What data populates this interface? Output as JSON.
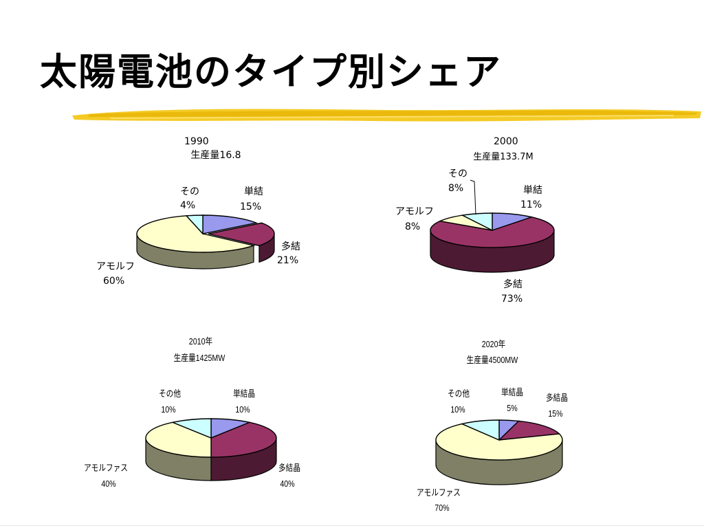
{
  "slide": {
    "title": "太陽電池のタイプ別シェア"
  },
  "colors": {
    "single": "#9999EE",
    "poly": "#993366",
    "amorphous": "#FFFFCC",
    "other": "#CCFFFF",
    "brush": "#F2C200"
  },
  "chart_data": [
    {
      "type": "pie",
      "title": "1990",
      "subtitle": "生産量16.8",
      "slices": [
        {
          "label": "単結",
          "value": 15,
          "value_label": "15%"
        },
        {
          "label": "多結",
          "value": 21,
          "value_label": "21%"
        },
        {
          "label": "アモルフ",
          "value": 60,
          "value_label": "60%"
        },
        {
          "label": "その",
          "value": 4,
          "value_label": "4%"
        }
      ]
    },
    {
      "type": "pie",
      "title": "2000",
      "subtitle": "生産量133.7M",
      "slices": [
        {
          "label": "単結",
          "value": 11,
          "value_label": "11%"
        },
        {
          "label": "多結",
          "value": 73,
          "value_label": "73%"
        },
        {
          "label": "アモルフ",
          "value": 8,
          "value_label": "8%"
        },
        {
          "label": "その",
          "value": 8,
          "value_label": "8%"
        }
      ]
    },
    {
      "type": "pie",
      "title": "2010年",
      "subtitle": "生産量1425MW",
      "slices": [
        {
          "label": "単結晶",
          "value": 10,
          "value_label": "10%"
        },
        {
          "label": "多結晶",
          "value": 40,
          "value_label": "40%"
        },
        {
          "label": "アモルファス",
          "value": 40,
          "value_label": "40%"
        },
        {
          "label": "その他",
          "value": 10,
          "value_label": "10%"
        }
      ]
    },
    {
      "type": "pie",
      "title": "2020年",
      "subtitle": "生産量4500MW",
      "slices": [
        {
          "label": "単結晶",
          "value": 5,
          "value_label": "5%"
        },
        {
          "label": "多結晶",
          "value": 15,
          "value_label": "15%"
        },
        {
          "label": "アモルファス",
          "value": 70,
          "value_label": "70%"
        },
        {
          "label": "その他",
          "value": 10,
          "value_label": "10%"
        }
      ]
    }
  ]
}
